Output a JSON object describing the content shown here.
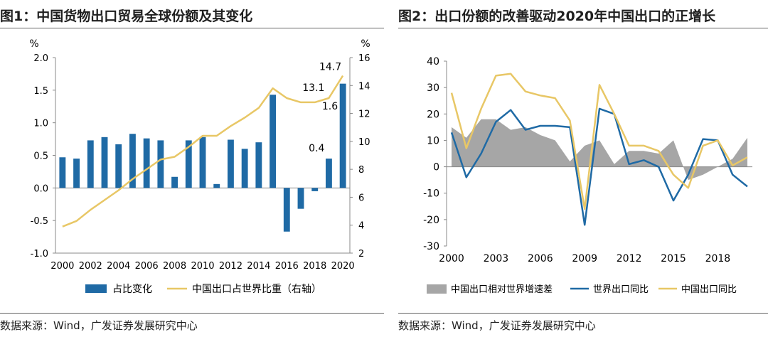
{
  "colors": {
    "bar": "#1f6aa5",
    "line1": "#e8c766",
    "area": "#a6a6a6",
    "line_blue": "#1f6aa5",
    "line_yellow": "#e8c766",
    "rule": "#666666"
  },
  "chart_data": [
    {
      "type": "bar",
      "title": "图1：中国货物出口贸易全球份额及其变化",
      "categories": [
        "2000",
        "2001",
        "2002",
        "2003",
        "2004",
        "2005",
        "2006",
        "2007",
        "2008",
        "2009",
        "2010",
        "2011",
        "2012",
        "2013",
        "2014",
        "2015",
        "2016",
        "2017",
        "2018",
        "2019",
        "2020"
      ],
      "x_tick_labels": [
        "2000",
        "2002",
        "2004",
        "2006",
        "2008",
        "2010",
        "2012",
        "2014",
        "2016",
        "2018",
        "2020"
      ],
      "left_axis": {
        "unit": "%",
        "ylim": [
          -1.0,
          2.0
        ],
        "ticks": [
          "-1.0",
          "-0.5",
          "0.0",
          "0.5",
          "1.0",
          "1.5",
          "2.0"
        ]
      },
      "right_axis": {
        "unit": "%",
        "ylim": [
          2,
          16
        ],
        "ticks": [
          "2",
          "4",
          "6",
          "8",
          "10",
          "12",
          "14",
          "16"
        ]
      },
      "series": [
        {
          "name": "占比变化",
          "type": "bar",
          "axis": "left",
          "values": [
            0.47,
            0.45,
            0.73,
            0.78,
            0.67,
            0.83,
            0.76,
            0.73,
            0.17,
            0.73,
            0.78,
            0.06,
            0.74,
            0.6,
            0.7,
            1.43,
            -0.67,
            -0.32,
            -0.05,
            0.45,
            1.6
          ]
        },
        {
          "name": "中国出口占世界比重（右轴）",
          "type": "line",
          "axis": "right",
          "values": [
            3.9,
            4.3,
            5.1,
            5.8,
            6.5,
            7.3,
            8.0,
            8.7,
            8.9,
            9.6,
            10.4,
            10.4,
            11.1,
            11.7,
            12.4,
            13.8,
            13.1,
            12.8,
            12.8,
            13.1,
            14.7
          ]
        }
      ],
      "annotations": [
        {
          "text": "14.7",
          "series": "line",
          "index": 20
        },
        {
          "text": "13.1",
          "series": "line",
          "index": 19
        },
        {
          "text": "1.6",
          "series": "bar",
          "index": 20
        },
        {
          "text": "0.4",
          "series": "bar",
          "index": 19
        }
      ],
      "legend_position": "bottom",
      "source": "数据来源：Wind，广发证券发展研究中心"
    },
    {
      "type": "line",
      "title": "图2：出口份额的改善驱动2020年中国出口的正增长",
      "x": [
        "2000",
        "2001",
        "2002",
        "2003",
        "2004",
        "2005",
        "2006",
        "2007",
        "2008",
        "2009",
        "2010",
        "2011",
        "2012",
        "2013",
        "2014",
        "2015",
        "2016",
        "2017",
        "2018",
        "2019",
        "2020"
      ],
      "x_tick_labels": [
        "2000",
        "2003",
        "2006",
        "2009",
        "2012",
        "2015",
        "2018"
      ],
      "ylim": [
        -30,
        40
      ],
      "y_ticks": [
        "-30",
        "-20",
        "-10",
        "0",
        "10",
        "20",
        "30",
        "40"
      ],
      "series": [
        {
          "name": "中国出口相对世界增速差",
          "type": "area",
          "values": [
            15,
            11,
            18,
            18,
            14,
            15,
            12,
            10,
            2,
            8,
            10,
            1,
            6,
            6,
            5,
            10,
            -5,
            -3,
            0,
            3,
            11
          ]
        },
        {
          "name": "世界出口同比",
          "type": "line",
          "values": [
            13,
            -4,
            5,
            17,
            21.5,
            14,
            15.5,
            15.5,
            15,
            -22,
            22,
            20,
            1,
            2.5,
            0,
            -12.8,
            -3,
            10.5,
            10,
            -3,
            -7.5
          ]
        },
        {
          "name": "中国出口同比",
          "type": "line",
          "values": [
            28,
            7,
            22,
            34.5,
            35.2,
            28.5,
            27,
            26,
            17.5,
            -16,
            31,
            20,
            8,
            8,
            6,
            -3,
            -8,
            8,
            10,
            0.5,
            3.6
          ]
        }
      ],
      "legend_position": "bottom",
      "source": "数据来源：Wind，广发证券发展研究中心"
    }
  ]
}
